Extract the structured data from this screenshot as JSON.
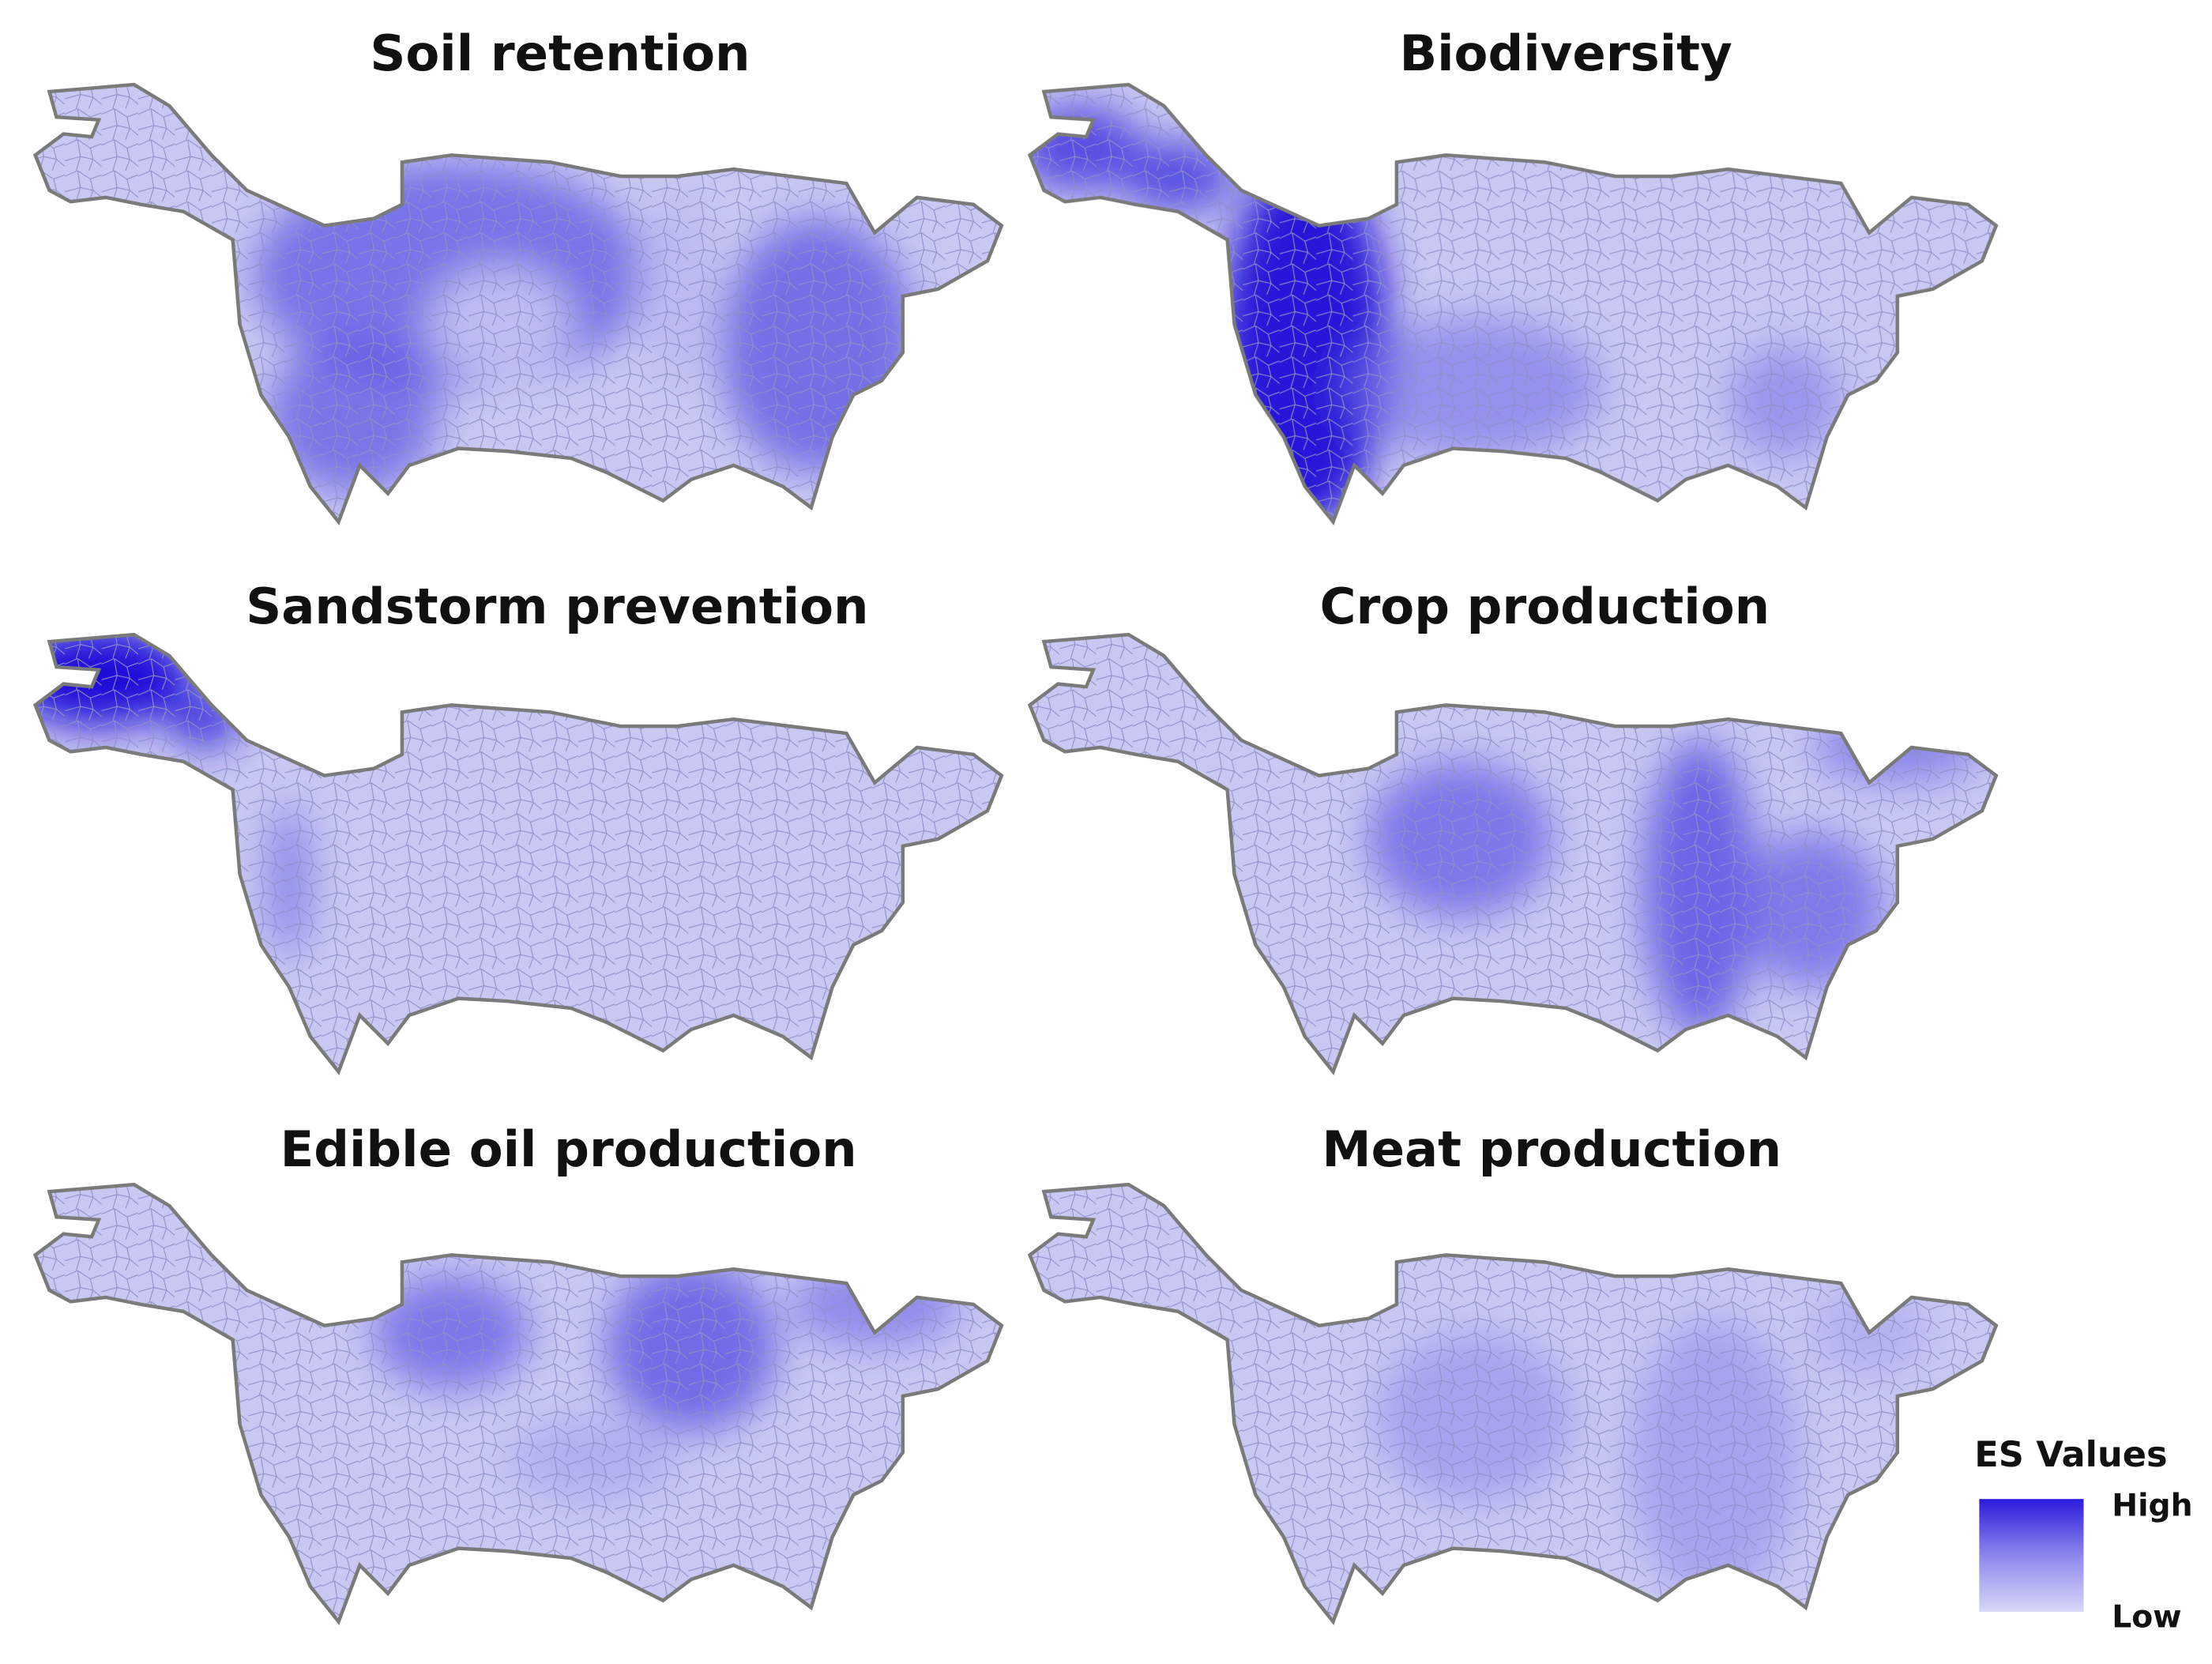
{
  "maps": [
    {
      "title": "Soil retention"
    },
    {
      "title": "Biodiversity"
    },
    {
      "title": "Sandstorm prevention"
    },
    {
      "title": "Crop production"
    },
    {
      "title": "Edible oil production"
    },
    {
      "title": "Meat production"
    }
  ],
  "legend": {
    "title": "ES Values",
    "high": "High",
    "low": "Low"
  }
}
